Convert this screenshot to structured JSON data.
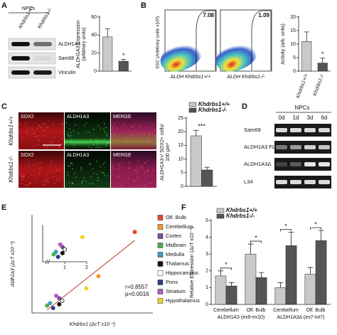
{
  "panels": [
    "A",
    "B",
    "C",
    "D",
    "E",
    "F"
  ],
  "blot_A": {
    "header": "NPCs",
    "lanes": [
      "Khdrbs1+/+",
      "Khdrbs1-/-"
    ],
    "bands": [
      "ALDH1A3",
      "Sam68",
      "Vinculin"
    ]
  },
  "flow_B": {
    "y_label": "SSC (Arbitrary units x10³)",
    "plots": [
      {
        "x_label": "ALDH Khdrbs1+/+",
        "gate_percent": 7.08
      },
      {
        "x_label": "ALDH Khdrbs1-/-",
        "gate_percent": 1.09
      }
    ]
  },
  "micro_C": {
    "columns": [
      "SOX2",
      "ALDH1A3",
      "MERGE"
    ],
    "rows": [
      "Khdrbs1+/+",
      "Khdrbs1-/-"
    ]
  },
  "gel_D": {
    "header": "NPCs",
    "lanes": [
      "0d",
      "1d",
      "3d",
      "6d"
    ],
    "bands": [
      "Sam68",
      "ALDH1A3 FL",
      "ALDH1A3Δ",
      "L34"
    ]
  },
  "chart_data": [
    {
      "type": "bar",
      "y_label": [
        "ALDH1A3 Expression",
        "(arbitrary units)"
      ],
      "ylim": [
        0,
        60
      ],
      "yticks": [
        0,
        20,
        40,
        60
      ],
      "values": [
        38,
        11
      ],
      "errors": [
        9,
        2
      ],
      "colors": [
        "#c9c9c9",
        "#555555"
      ],
      "significance": "*"
    },
    {
      "type": "bar",
      "y_label": [
        "Activity (arb. units)"
      ],
      "categories": [
        "Khdrbs1+/+",
        "Khdrbs1-/-"
      ],
      "ylim": [
        0,
        20
      ],
      "yticks": [
        0,
        5,
        10,
        15,
        20
      ],
      "values": [
        11,
        3
      ],
      "errors": [
        3.5,
        1.8
      ],
      "colors": [
        "#c9c9c9",
        "#555555"
      ],
      "significance": "*"
    },
    {
      "type": "bar",
      "y_label": [
        "ALDH1A3+/ SOX2+ cells/",
        "100 µm²"
      ],
      "ylim": [
        0,
        25
      ],
      "yticks": [
        0,
        5,
        10,
        15,
        20,
        25
      ],
      "series": [
        {
          "name": "Khdrbs1+/+",
          "color": "#c9c9c9",
          "values": [
            18.5
          ],
          "errors": [
            2
          ]
        },
        {
          "name": "Khdrbs1-/-",
          "color": "#555555",
          "values": [
            6
          ],
          "errors": [
            1
          ]
        }
      ],
      "significance": "***"
    },
    {
      "type": "scatter",
      "x_label": "Khdrbs1 (ΔcT x10⁻³)",
      "y_label": "Aldh1a3 (ΔcT x10⁻³)",
      "xlim": [
        0,
        4
      ],
      "ylim": [
        0,
        4
      ],
      "inset_xlim": [
        0,
        2
      ],
      "inset_ylim": [
        0,
        1.5
      ],
      "inset_xticks": [
        1,
        2
      ],
      "series": [
        {
          "name": "Olf. Bulb",
          "color": "#e8462a",
          "x": [
            3.4
          ],
          "values": [
            3.3
          ]
        },
        {
          "name": "Cerebellum",
          "color": "#f39a2a",
          "x": [
            2.2
          ],
          "values": [
            1.5
          ]
        },
        {
          "name": "Cortex",
          "color": "#7b4fa0",
          "x": [
            0.9
          ],
          "values": [
            0.6
          ]
        },
        {
          "name": "Midbrain",
          "color": "#4caf50",
          "x": [
            0.5
          ],
          "values": [
            0.3
          ]
        },
        {
          "name": "Medulla",
          "color": "#3aa0b8",
          "x": [
            0.6
          ],
          "values": [
            0.4
          ]
        },
        {
          "name": "Thalamus",
          "color": "#111111",
          "x": [
            0.9
          ],
          "values": [
            0.35
          ]
        },
        {
          "name": "Hippocampus",
          "color": "#111111",
          "hollow": true,
          "x": [
            1.0
          ],
          "values": [
            0.5
          ]
        },
        {
          "name": "Pons",
          "color": "#2b3f8c",
          "x": [
            0.7
          ],
          "values": [
            0.2
          ]
        },
        {
          "name": "Striatum",
          "color": "#b05cc4",
          "x": [
            0.8
          ],
          "values": [
            0.7
          ]
        },
        {
          "name": "Hypothalamus",
          "color": "#f2d22e",
          "x": [
            1.8
          ],
          "values": [
            1.0
          ]
        }
      ],
      "annotations": [
        "r=0.8557",
        "p=0.0016"
      ]
    },
    {
      "type": "bar",
      "y_label": [
        "Relative Expression (ΔcT x10⁻³)"
      ],
      "ylim": [
        0,
        5
      ],
      "yticks": [
        0,
        1,
        2,
        3,
        4,
        5
      ],
      "categories": [
        "Cerebellum",
        "Olf. Bulb",
        "Cerebellum",
        "Olf. Bulb"
      ],
      "category_groups": [
        "ALDH1A3 (ex9-ex10)",
        "ALDH1A3Δ (ex7-int7)"
      ],
      "series": [
        {
          "name": "Khdrbs1+/+",
          "color": "#c9c9c9",
          "values": [
            1.7,
            3.0,
            1.0,
            1.8
          ],
          "errors": [
            0.3,
            0.6,
            0.3,
            0.4
          ]
        },
        {
          "name": "Khdrbs1-/-",
          "color": "#555555",
          "values": [
            1.1,
            1.6,
            3.5,
            3.8
          ],
          "errors": [
            0.2,
            0.3,
            0.8,
            0.6
          ]
        }
      ],
      "significance": [
        "*",
        "*",
        "*",
        "*"
      ]
    }
  ]
}
